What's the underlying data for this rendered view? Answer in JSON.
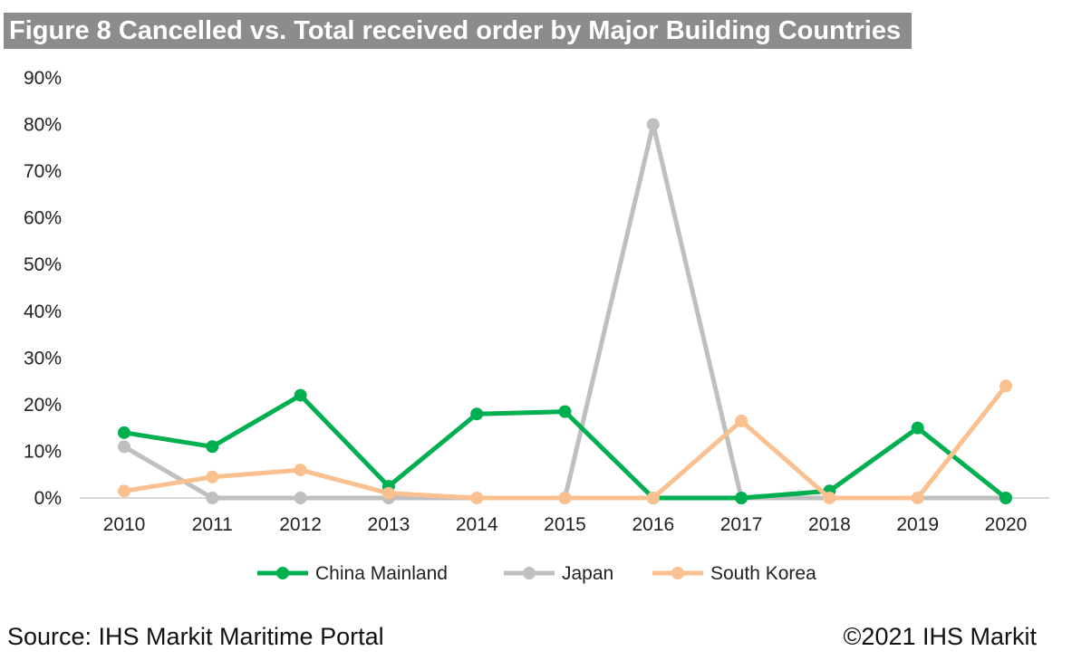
{
  "chart_data": {
    "type": "line",
    "title": "Figure 8 Cancelled vs. Total received order by Major Building Countries",
    "categories": [
      "2010",
      "2011",
      "2012",
      "2013",
      "2014",
      "2015",
      "2016",
      "2017",
      "2018",
      "2019",
      "2020"
    ],
    "ylim": [
      0,
      90
    ],
    "yticks": [
      0,
      10,
      20,
      30,
      40,
      50,
      60,
      70,
      80,
      90
    ],
    "ytick_labels": [
      "0%",
      "10%",
      "20%",
      "30%",
      "40%",
      "50%",
      "60%",
      "70%",
      "80%",
      "90%"
    ],
    "grid": false,
    "legend_position": "bottom",
    "series": [
      {
        "name": "China Mainland",
        "color": "#00b050",
        "values": [
          14,
          11,
          22,
          2.5,
          18,
          18.5,
          0,
          0,
          1.5,
          15,
          0
        ]
      },
      {
        "name": "Japan",
        "color": "#bfbfbf",
        "values": [
          11,
          0,
          0,
          0,
          null,
          0,
          80,
          0,
          null,
          null,
          0
        ]
      },
      {
        "name": "South Korea",
        "color": "#fac090",
        "values": [
          1.5,
          4.5,
          6,
          1,
          0,
          0,
          0,
          16.5,
          0,
          0,
          24
        ]
      }
    ]
  },
  "footer": {
    "source": "Source: IHS Markit Maritime Portal",
    "copyright": "©2021 IHS Markit"
  }
}
